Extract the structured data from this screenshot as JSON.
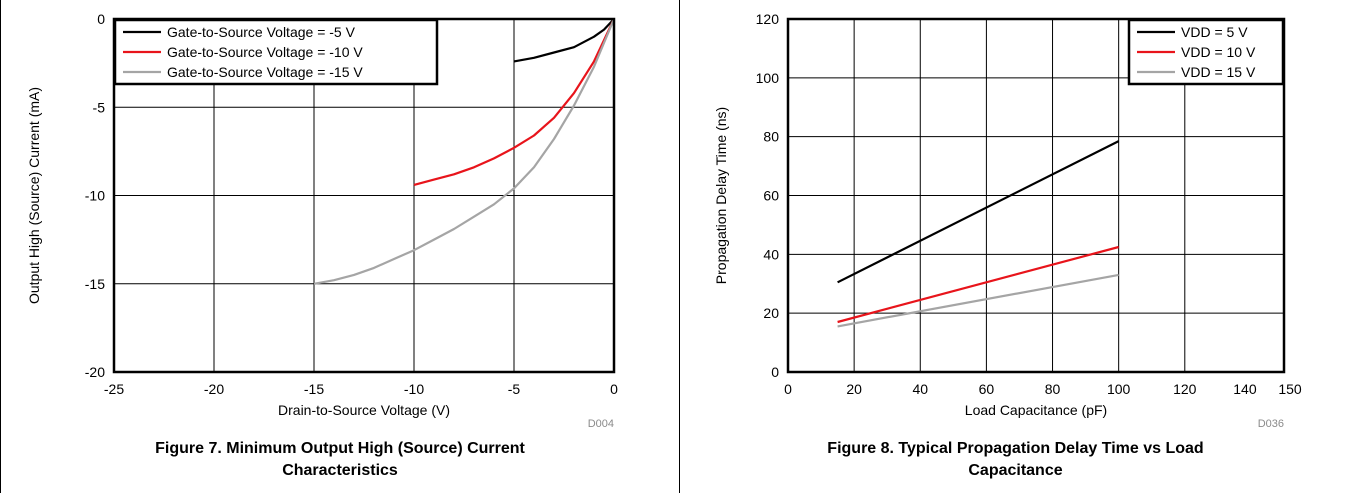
{
  "figure7": {
    "caption_line1": "Figure 7. Minimum Output High (Source) Current",
    "caption_line2": "Characteristics",
    "figure_id": "D004",
    "chart_data": {
      "type": "line",
      "xlabel": "Drain-to-Source Voltage (V)",
      "ylabel": "Output High (Source) Current (mA)",
      "xlim": [
        -25,
        0
      ],
      "ylim": [
        -20,
        0
      ],
      "xticks": [
        -25,
        -20,
        -15,
        -10,
        -5,
        0
      ],
      "yticks": [
        -20,
        -15,
        -10,
        -5,
        0
      ],
      "grid": true,
      "legend_position": "top-left",
      "series": [
        {
          "name": "Gate-to-Source Voltage = -5 V",
          "color": "#000000",
          "x": [
            -5,
            -4,
            -3,
            -2,
            -1,
            -0.5,
            0
          ],
          "y": [
            -2.4,
            -2.2,
            -1.9,
            -1.6,
            -1.0,
            -0.6,
            0
          ]
        },
        {
          "name": "Gate-to-Source Voltage = -10 V",
          "color": "#e8141b",
          "x": [
            -10,
            -9,
            -8,
            -7,
            -6,
            -5,
            -4,
            -3,
            -2,
            -1,
            0
          ],
          "y": [
            -9.4,
            -9.1,
            -8.8,
            -8.4,
            -7.9,
            -7.3,
            -6.6,
            -5.6,
            -4.2,
            -2.4,
            0
          ]
        },
        {
          "name": "Gate-to-Source Voltage = -15 V",
          "color": "#a5a5a5",
          "x": [
            -15,
            -14,
            -13,
            -12,
            -11,
            -10,
            -9,
            -8,
            -7,
            -6,
            -5,
            -4,
            -3,
            -2,
            -1,
            0
          ],
          "y": [
            -15.0,
            -14.8,
            -14.5,
            -14.1,
            -13.6,
            -13.1,
            -12.5,
            -11.9,
            -11.2,
            -10.5,
            -9.6,
            -8.4,
            -6.8,
            -4.9,
            -2.7,
            0
          ]
        }
      ]
    }
  },
  "figure8": {
    "caption_line1": "Figure 8. Typical Propagation Delay Time vs Load",
    "caption_line2": "Capacitance",
    "figure_id": "D036",
    "chart_data": {
      "type": "line",
      "xlabel": "Load Capacitance (pF)",
      "ylabel": "Propagation Delay Time (ns)",
      "xlim": [
        0,
        150
      ],
      "ylim": [
        0,
        120
      ],
      "xticks": [
        0,
        20,
        40,
        60,
        80,
        100,
        120,
        140,
        150
      ],
      "yticks": [
        0,
        20,
        40,
        60,
        80,
        100,
        120
      ],
      "grid": true,
      "legend_position": "top-right",
      "series": [
        {
          "name": "VDD = 5 V",
          "color": "#000000",
          "x": [
            15,
            100
          ],
          "y": [
            30.5,
            78.5
          ]
        },
        {
          "name": "VDD = 10 V",
          "color": "#e8141b",
          "x": [
            15,
            100
          ],
          "y": [
            17.0,
            42.5
          ]
        },
        {
          "name": "VDD = 15 V",
          "color": "#a5a5a5",
          "x": [
            15,
            100
          ],
          "y": [
            15.5,
            33.0
          ]
        }
      ]
    }
  }
}
